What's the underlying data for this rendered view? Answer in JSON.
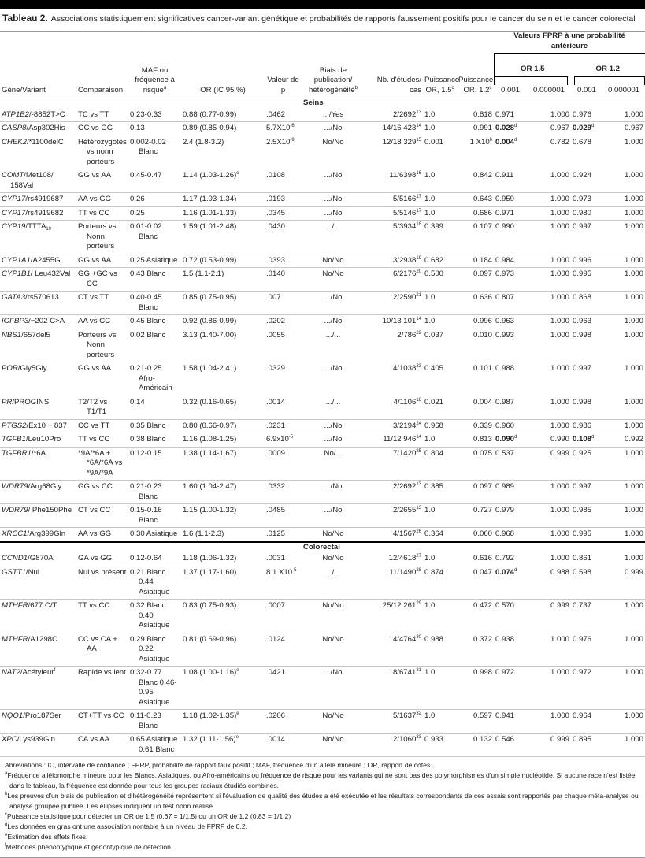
{
  "title": {
    "label": "Tableau 2.",
    "text": "Associations statistiquement significatives cancer-variant génétique et probabilités de rapports faussement positifs pour le cancer du sein et le cancer colorectal"
  },
  "header": {
    "group": "Valeurs FPRP à une probabilité antérieure",
    "or15": "OR 1.5",
    "or12": "OR 1.2",
    "cols": [
      {
        "t": "Gène/Variant"
      },
      {
        "t": "Comparaison"
      },
      {
        "t": "MAF ou fréquence à risque",
        "sup": "a"
      },
      {
        "t": "OR (IC 95 %)"
      },
      {
        "t": "Valeur de p"
      },
      {
        "t": "Biais de publication/ hétérogénéité",
        "sup": "b"
      },
      {
        "t": "Nb. d'études/ cas"
      },
      {
        "t": "Puissance OR, 1.5",
        "sup": "c"
      },
      {
        "t": "Puissance OR, 1.2",
        "sup": "c"
      },
      {
        "t": "0.001"
      },
      {
        "t": "0.000001"
      },
      {
        "t": "0.001"
      },
      {
        "t": "0.000001"
      }
    ]
  },
  "sections": [
    {
      "label": "Seins",
      "rows": [
        [
          {
            "i": "ATP1B2",
            "t": "/-8852T>C"
          },
          "TC vs TT",
          "0.23-0.33",
          "0.88 (0.77-0.99)",
          ".0462",
          ".../Yes",
          {
            "t": "2/2692",
            "sup": "13"
          },
          "1.0",
          "0.818",
          "0.971",
          "1.000",
          "0.976",
          "1.000"
        ],
        [
          {
            "i": "CASP8",
            "t": "/Asp302His"
          },
          "GC vs GG",
          "0.13",
          "0.89 (0.85-0.94)",
          {
            "t": "5.7X10",
            "sup": "-6"
          },
          ".../No",
          {
            "t": "14/16 423",
            "sup": "14"
          },
          "1.0",
          "0.991",
          {
            "t": "0.028",
            "sup": "d",
            "b": true
          },
          "0.967",
          {
            "t": "0.029",
            "sup": "d",
            "b": true
          },
          "0.967"
        ],
        [
          {
            "i": "CHEK2",
            "t": "/*1100delC"
          },
          "Hétérozygotes vs nonn porteurs",
          "0.002-0.02 Blanc",
          "2.4 (1.8-3.2)",
          {
            "t": "2.5X10",
            "sup": "-9"
          },
          "No/No",
          {
            "t": "12/18 329",
            "sup": "15"
          },
          "0.001",
          {
            "t": "1 X10",
            "sup": "6"
          },
          {
            "t": "0.004",
            "sup": "d",
            "b": true
          },
          "0.782",
          "0.678",
          "1.000"
        ],
        [
          {
            "i": "COMT",
            "t": "/Met108/ 158Val"
          },
          "GG vs AA",
          "0.45-0.47",
          {
            "t": "1.14 (1.03-1.26)",
            "sup": "e"
          },
          ".0108",
          ".../No",
          {
            "t": "11/6398",
            "sup": "16"
          },
          "1.0",
          "0.842",
          "0.911",
          "1.000",
          "0.924",
          "1.000"
        ],
        [
          {
            "i": "CYP17",
            "t": "/rs4919687"
          },
          "AA vs GG",
          "0.26",
          "1.17 (1.03-1.34)",
          ".0193",
          ".../No",
          {
            "t": "5/5166",
            "sup": "17"
          },
          "1.0",
          "0.643",
          "0.959",
          "1.000",
          "0.973",
          "1.000"
        ],
        [
          {
            "i": "CYP17",
            "t": "/rs4919682"
          },
          "TT vs CC",
          "0.25",
          "1.16 (1.01-1.33)",
          ".0345",
          ".../No",
          {
            "t": "5/5146",
            "sup": "17"
          },
          "1.0",
          "0.686",
          "0.971",
          "1.000",
          "0.980",
          "1.000"
        ],
        [
          {
            "i": "CYP19",
            "t": "/TTTA",
            "sub": "10"
          },
          "Porteurs vs Nonn porteurs",
          "0.01-0.02 Blanc",
          "1.59 (1.01-2.48)",
          ".0430",
          ".../...",
          {
            "t": "5/3934",
            "sup": "18"
          },
          "0.399",
          "0.107",
          "0.990",
          "1.000",
          "0.997",
          "1.000"
        ],
        [
          {
            "i": "CYP1A1",
            "t": "/A2455G"
          },
          "GG vs AA",
          "0.25 Asiatique",
          "0.72 (0.53-0.99)",
          ".0393",
          "No/No",
          {
            "t": "3/2938",
            "sup": "19"
          },
          "0.682",
          "0.184",
          "0.984",
          "1.000",
          "0.996",
          "1.000"
        ],
        [
          {
            "i": "CYP1B1",
            "t": "/ Leu432Val"
          },
          "GG +GC vs CC",
          "0.43 Blanc",
          "1.5 (1.1-2.1)",
          ".0140",
          "No/No",
          {
            "t": "6/2176",
            "sup": "20"
          },
          "0.500",
          "0.097",
          "0.973",
          "1.000",
          "0.995",
          "1.000"
        ],
        [
          {
            "i": "GATA3",
            "t": "/rs570613"
          },
          "CT vs TT",
          "0.40-0.45 Blanc",
          "0.85 (0.75-0.95)",
          ".007",
          ".../No",
          {
            "t": "2/2590",
            "sup": "21"
          },
          "1.0",
          "0.636",
          "0.807",
          "1.000",
          "0.868",
          "1.000"
        ],
        [
          {
            "i": "IGFBP3",
            "t": "/−202 C>A"
          },
          "AA vs CC",
          "0.45 Blanc",
          "0.92 (0.86-0.99)",
          ".0202",
          ".../No",
          {
            "t": "10/13 101",
            "sup": "14"
          },
          "1.0",
          "0.996",
          "0.963",
          "1.000",
          "0.963",
          "1.000"
        ],
        [
          {
            "i": "NBS1",
            "t": "/657del5"
          },
          "Porteurs vs Nonn porteurs",
          "0.02 Blanc",
          "3.13 (1.40-7.00)",
          ".0055",
          ".../...",
          {
            "t": "2/786",
            "sup": "22"
          },
          "0.037",
          "0.010",
          "0.993",
          "1.000",
          "0.998",
          "1.000"
        ],
        [
          {
            "i": "POR",
            "t": "/Gly5Gly"
          },
          "GG vs AA",
          "0.21-0.25 Afro-Américain",
          "1.58 (1.04-2.41)",
          ".0329",
          ".../No",
          {
            "t": "4/1038",
            "sup": "23"
          },
          "0.405",
          "0.101",
          "0.988",
          "1.000",
          "0.997",
          "1.000"
        ],
        [
          {
            "i": "PR",
            "t": "/PROGINS"
          },
          "T2/T2 vs T1/T1",
          "0.14",
          "0.32 (0.16-0.65)",
          ".0014",
          ".../...",
          {
            "t": "4/1106",
            "sup": "18"
          },
          "0.021",
          "0.004",
          "0.987",
          "1.000",
          "0.998",
          "1.000"
        ],
        [
          {
            "i": "PTGS2",
            "t": "/Ex10 + 837"
          },
          "CC vs TT",
          "0.35 Blanc",
          "0.80 (0.66-0.97)",
          ".0231",
          ".../No",
          {
            "t": "3/2194",
            "sup": "24"
          },
          "0.968",
          "0.339",
          "0.960",
          "1.000",
          "0.986",
          "1.000"
        ],
        [
          {
            "i": "TGFB1",
            "t": "/Leu10Pro"
          },
          "TT vs CC",
          "0.38 Blanc",
          "1.16 (1.08-1.25)",
          {
            "t": "6.9x10",
            "sup": "-5"
          },
          ".../No",
          {
            "t": "11/12 946",
            "sup": "14"
          },
          "1.0",
          "0.813",
          {
            "t": "0.090",
            "sup": "d",
            "b": true
          },
          "0.990",
          {
            "t": "0.108",
            "sup": "d",
            "b": true
          },
          "0.992"
        ],
        [
          {
            "i": "TGFBR1",
            "t": "/*6A"
          },
          "*9A/*6A + *6A/*6A vs *9A/*9A",
          "0.12-0.15",
          "1.38 (1.14-1.67)",
          ".0009",
          "No/...",
          {
            "t": "7/1420",
            "sup": "25"
          },
          "0.804",
          "0.075",
          "0.537",
          "0.999",
          "0.925",
          "1.000"
        ],
        [
          {
            "i": "WDR79",
            "t": "/Arg68Gly"
          },
          "GG vs CC",
          "0.21-0.23 Blanc",
          "1.60 (1.04-2.47)",
          ".0332",
          ".../No",
          {
            "t": "2/2692",
            "sup": "13"
          },
          "0.385",
          "0.097",
          "0.989",
          "1.000",
          "0.997",
          "1.000"
        ],
        [
          {
            "i": "WDR79",
            "t": "/ Phe150Phe"
          },
          "CT vs CC",
          "0.15-0.16 Blanc",
          "1.15 (1.00-1.32)",
          ".0485",
          ".../No",
          {
            "t": "2/2655",
            "sup": "13"
          },
          "1.0",
          "0.727",
          "0.979",
          "1.000",
          "0.985",
          "1.000"
        ],
        [
          {
            "i": "XRCC1",
            "t": "/Arg399Gln"
          },
          "AA vs GG",
          "0.30 Asiatique",
          "1.6 (1.1-2.3)",
          ".0125",
          "No/No",
          {
            "t": "4/1567",
            "sup": "26"
          },
          "0.364",
          "0.060",
          "0.968",
          "1.000",
          "0.995",
          "1.000"
        ]
      ]
    },
    {
      "label": "Colorectal",
      "rows": [
        [
          {
            "i": "CCND1",
            "t": "/G870A"
          },
          "GA vs GG",
          "0.12-0.64",
          "1.18 (1.06-1.32)",
          ".0031",
          "No/No",
          {
            "t": "12/4618",
            "sup": "27"
          },
          "1.0",
          "0.616",
          "0.792",
          "1.000",
          "0.861",
          "1.000"
        ],
        [
          {
            "i": "GSTT1",
            "t": "/Nul"
          },
          "Nul vs présent",
          {
            "t": "0.21 Blanc\n0.44 Asiatique",
            "pre": true
          },
          "1.37 (1.17-1.60)",
          {
            "t": "8.1 X10",
            "sup": "-5"
          },
          ".../...",
          {
            "t": "11/1490",
            "sup": "28"
          },
          "0.874",
          "0.047",
          {
            "t": "0.074",
            "sup": "d",
            "b": true
          },
          "0.988",
          "0.598",
          "0.999"
        ],
        [
          {
            "i": "MTHFR",
            "t": "/677 C/T"
          },
          "TT vs CC",
          {
            "t": "0.32 Blanc\n0.40 Asiatique",
            "pre": true
          },
          "0.83 (0.75-0.93)",
          ".0007",
          "No/No",
          {
            "t": "25/12 261",
            "sup": "29"
          },
          "1.0",
          "0.472",
          "0.570",
          "0.999",
          "0.737",
          "1.000"
        ],
        [
          {
            "i": "MTHFR",
            "t": "/A1298C"
          },
          "CC vs CA + AA",
          {
            "t": "0.29 Blanc\n0.22 Asiatique",
            "pre": true
          },
          "0.81 (0.69-0.96)",
          ".0124",
          "No/No",
          {
            "t": "14/4764",
            "sup": "30"
          },
          "0.988",
          "0.372",
          "0.938",
          "1.000",
          "0.976",
          "1.000"
        ],
        [
          {
            "i": "NAT2",
            "t": "/Acétyleur",
            "sup": "f"
          },
          "Rapide vs lent",
          "0.32-0.77 Blanc 0.46-0.95 Asiatique",
          {
            "t": "1.08 (1.00-1.16)",
            "sup": "e"
          },
          ".0421",
          ".../No",
          {
            "t": "18/6741",
            "sup": "31"
          },
          "1.0",
          "0.998",
          "0.972",
          "1.000",
          "0.972",
          "1.000"
        ],
        [
          {
            "i": "NQO1",
            "t": "/Pro187Ser"
          },
          "CT+TT vs CC",
          "0.11-0.23 Blanc",
          {
            "t": "1.18 (1.02-1.35)",
            "sup": "e"
          },
          ".0206",
          "No/No",
          {
            "t": "5/1637",
            "sup": "32"
          },
          "1.0",
          "0.597",
          "0.941",
          "1.000",
          "0.964",
          "1.000"
        ],
        [
          {
            "i": "XPC",
            "t": "/Lys939Gln"
          },
          "CA vs AA",
          {
            "t": "0.65 Asiatique\n0.61 Blanc",
            "pre": true
          },
          {
            "t": "1.32 (1.11-1.56)",
            "sup": "e"
          },
          ".0014",
          "No/No",
          {
            "t": "2/1060",
            "sup": "33"
          },
          "0.933",
          "0.132",
          "0.546",
          "0.999",
          "0.895",
          "1.000"
        ]
      ]
    }
  ],
  "footnotes": [
    {
      "sup": "",
      "t": "Abréviations : IC, intervalle de confiance ; FPRP, probabilité de rapport faux positif ; MAF, fréquence d'un allèle mineure ; OR, rapport de cotes."
    },
    {
      "sup": "a",
      "t": "Fréquence allélomorphe mineure pour les Blancs, Asiatiques, ou Afro-américains ou fréquence de risque pour les variants qui ne sont pas des polymorphismes d'un simple nucléotide. Si aucune race n'est listée dans le tableau, la fréquence est donnée pour tous les groupes raciaux étudiés combinés."
    },
    {
      "sup": "b",
      "t": "Les preuves d'un biais de publication et d'hétérogénéité représentent si l'évaluation de qualité des études a été exécutée et les résultats correspondants de ces essais sont rapportés par chaque méta-analyse ou analyse groupée publiée. Les ellipses indiquent un test nonn réalisé."
    },
    {
      "sup": "c",
      "t": "Puissance statistique pour détecter un OR de 1.5 (0.67 = 1/1.5) ou un OR de 1.2 (0.83 = 1/1.2)"
    },
    {
      "sup": "d",
      "t": "Les données en gras ont une association nontable à un niveau de FPRP de 0.2."
    },
    {
      "sup": "e",
      "t": "Estimation des effets fixes."
    },
    {
      "sup": "f",
      "t": "Méthodes phénontypique et génontypique de détection."
    }
  ]
}
